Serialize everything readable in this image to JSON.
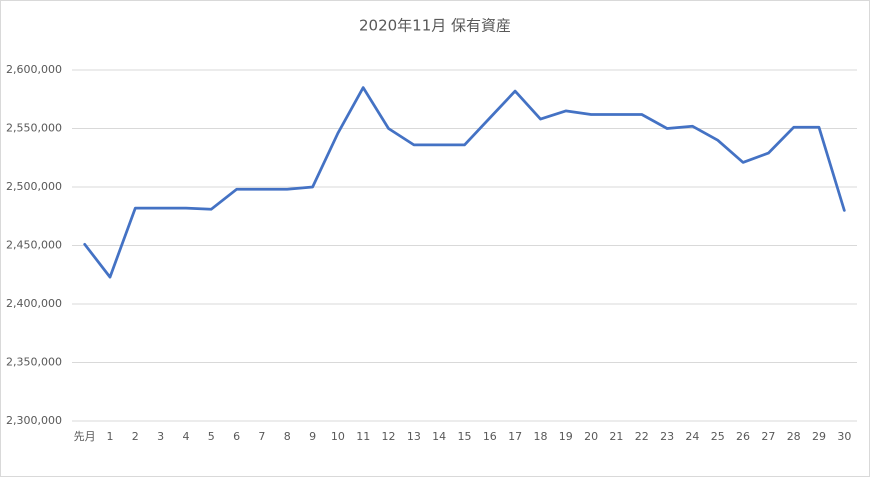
{
  "chart_data": {
    "type": "line",
    "title": "2020年11月 保有資産",
    "categories": [
      "先月",
      "1",
      "2",
      "3",
      "4",
      "5",
      "6",
      "7",
      "8",
      "9",
      "10",
      "11",
      "12",
      "13",
      "14",
      "15",
      "16",
      "17",
      "18",
      "19",
      "20",
      "21",
      "22",
      "23",
      "24",
      "25",
      "26",
      "27",
      "28",
      "29",
      "30"
    ],
    "values": [
      2451000,
      2423000,
      2482000,
      2482000,
      2482000,
      2481000,
      2498000,
      2498000,
      2498000,
      2500000,
      2546000,
      2585000,
      2550000,
      2536000,
      2536000,
      2536000,
      2559000,
      2582000,
      2558000,
      2565000,
      2562000,
      2562000,
      2562000,
      2550000,
      2552000,
      2540000,
      2521000,
      2529000,
      2551000,
      2551000,
      2480000
    ],
    "color": "#4472c4",
    "ylim": [
      2300000,
      2600000
    ],
    "yticks": [
      {
        "value": 2300000,
        "label": "2,300,000"
      },
      {
        "value": 2350000,
        "label": "2,350,000"
      },
      {
        "value": 2400000,
        "label": "2,400,000"
      },
      {
        "value": 2450000,
        "label": "2,450,000"
      },
      {
        "value": 2500000,
        "label": "2,500,000"
      },
      {
        "value": 2550000,
        "label": "2,550,000"
      },
      {
        "value": 2600000,
        "label": "2,600,000"
      }
    ],
    "grid": true
  }
}
